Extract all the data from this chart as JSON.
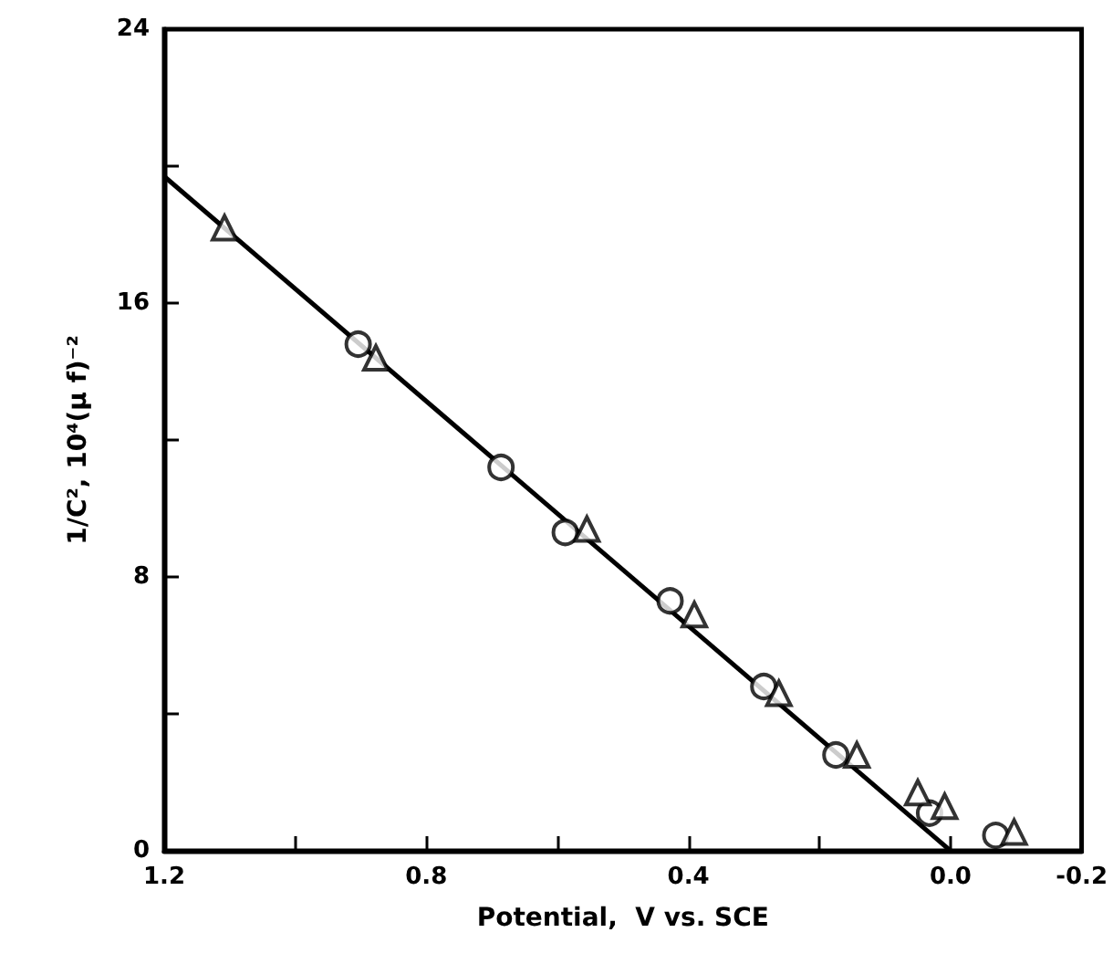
{
  "chart_data": {
    "type": "scatter",
    "xlabel": "Potential,  V vs. SCE",
    "ylabel": "1/C², 10⁴(μ f)⁻²",
    "xlim": [
      1.2,
      -0.2
    ],
    "xticks": [
      1.2,
      {
        "value": 1.0,
        "label": null
      },
      0.8,
      {
        "value": 0.6,
        "label": null
      },
      0.4,
      {
        "value": 0.2,
        "label": null
      },
      {
        "value": 0.0,
        "label": "0.0"
      },
      -0.2
    ],
    "ylim": [
      0,
      24
    ],
    "yticks": [
      0,
      {
        "value": 4,
        "label": null
      },
      8,
      {
        "value": 12,
        "label": null
      },
      16,
      {
        "value": 20,
        "label": null
      },
      24
    ],
    "grid": false,
    "series": [
      {
        "type": "line",
        "color": "#000000",
        "marker": "none",
        "line_style": "solid",
        "x": [
          1.2,
          0.0
        ],
        "values": [
          19.7,
          0
        ]
      },
      {
        "color": "#000000",
        "marker": "circle",
        "x": [
          0.904,
          0.686,
          0.588,
          0.428,
          0.285,
          0.175,
          0.032,
          -0.069
        ],
        "values": [
          14.8,
          11.2,
          9.3,
          7.3,
          4.8,
          2.8,
          1.1,
          0.45
        ]
      },
      {
        "color": "#000000",
        "marker": "triangle",
        "x": [
          1.108,
          0.877,
          0.555,
          0.391,
          0.262,
          0.143,
          0.05,
          0.009,
          -0.097
        ],
        "values": [
          18.2,
          14.4,
          9.4,
          6.9,
          4.6,
          2.8,
          1.7,
          1.3,
          0.55
        ]
      }
    ]
  }
}
